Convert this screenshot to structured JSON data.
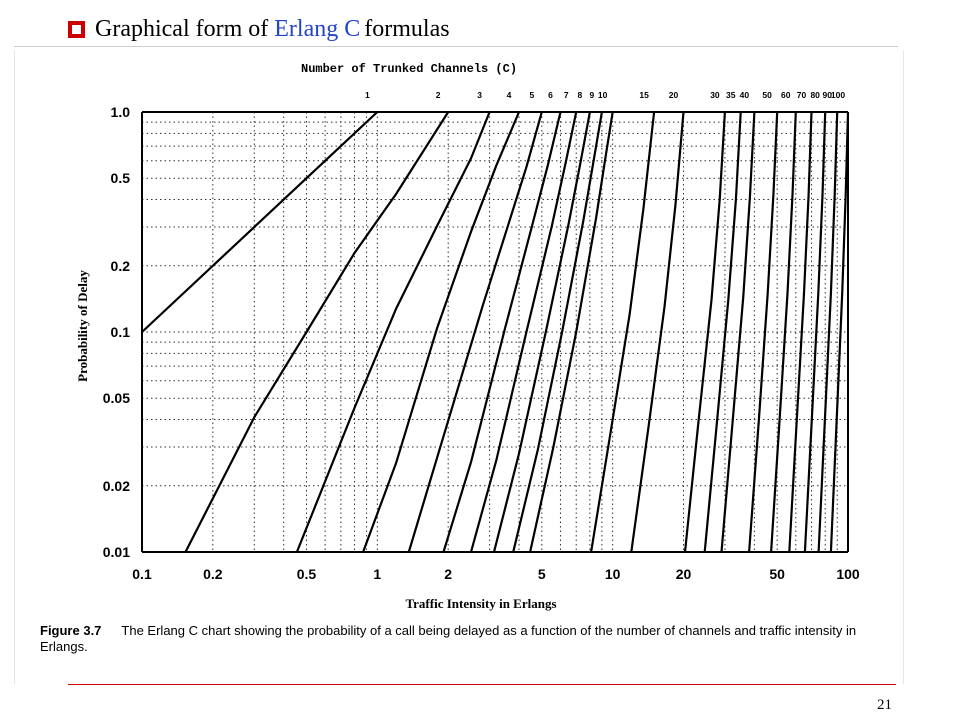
{
  "slide": {
    "title_pre": "Graphical form of",
    "title_em": "Erlang C",
    "title_post": "formulas",
    "page_number": "21"
  },
  "caption": {
    "label": "Figure 3.7",
    "text": "The Erlang C chart showing the probability of a call being delayed as a function of the number of channels and traffic intensity in Erlangs."
  },
  "colors": {
    "bullet": "#cc0000",
    "title_accent": "#2244cc",
    "footer_rule": "#cc0000"
  },
  "chart_data": {
    "type": "line",
    "title": "Number of Trunked Channels (C)",
    "xlabel": "Traffic Intensity in Erlangs",
    "ylabel": "Probability of Delay",
    "x_scale": "log",
    "y_scale": "log",
    "xlim": [
      0.1,
      100
    ],
    "ylim": [
      0.01,
      1.0
    ],
    "grid": true,
    "x_ticks": [
      0.1,
      0.2,
      0.5,
      1,
      2,
      5,
      10,
      20,
      50,
      100
    ],
    "x_tick_labels": [
      "0.1",
      "0.2",
      "0.5",
      "1",
      "2",
      "5",
      "10",
      "20",
      "50",
      "100"
    ],
    "y_ticks": [
      0.01,
      0.02,
      0.05,
      0.1,
      0.2,
      0.5,
      1.0
    ],
    "y_tick_labels": [
      "0.01",
      "0.02",
      "0.05",
      "0.1",
      "0.2",
      "0.5",
      "1.0"
    ],
    "channel_labels": [
      "1",
      "2",
      "3",
      "4",
      "5",
      "6",
      "7",
      "8",
      "9",
      "10",
      "15",
      "20",
      "30",
      "35",
      "40",
      "50",
      "60",
      "70",
      "80",
      "90",
      "100"
    ],
    "series": [
      {
        "name": "1",
        "x": [
          0.1,
          1
        ],
        "y": [
          0.1,
          1.0
        ]
      },
      {
        "name": "2",
        "x": [
          0.153,
          0.3,
          0.5,
          0.8,
          1.2,
          2
        ],
        "y": [
          0.01,
          0.041,
          0.1,
          0.2286,
          0.4235,
          1.0
        ]
      },
      {
        "name": "3",
        "x": [
          0.455,
          0.8,
          1.2,
          1.8,
          2.5,
          3
        ],
        "y": [
          0.01,
          0.0452,
          0.1274,
          0.3055,
          0.6154,
          1.0
        ]
      },
      {
        "name": "4",
        "x": [
          0.87,
          1.2,
          1.8,
          2.5,
          3.2,
          4
        ],
        "y": [
          0.01,
          0.0253,
          0.1052,
          0.2858,
          0.5694,
          1.0
        ]
      },
      {
        "name": "5",
        "x": [
          1.36,
          2,
          2.8,
          3.6,
          4.3,
          5
        ],
        "y": [
          0.01,
          0.0395,
          0.1312,
          0.3068,
          0.5615,
          1.0
        ]
      },
      {
        "name": "6",
        "x": [
          1.91,
          2.5,
          3.5,
          4.5,
          5.3,
          6
        ],
        "y": [
          0.01,
          0.0256,
          0.1055,
          0.2924,
          0.5725,
          1.0
        ]
      },
      {
        "name": "7",
        "x": [
          2.5,
          3.2,
          4.3,
          5.5,
          6.3,
          7
        ],
        "y": [
          0.01,
          0.026,
          0.1,
          0.3,
          0.58,
          1.0
        ]
      },
      {
        "name": "8",
        "x": [
          3.13,
          4.0,
          5.2,
          6.5,
          7.3,
          8
        ],
        "y": [
          0.01,
          0.028,
          0.1,
          0.31,
          0.59,
          1.0
        ]
      },
      {
        "name": "9",
        "x": [
          3.78,
          4.8,
          6.1,
          7.5,
          8.3,
          9
        ],
        "y": [
          0.01,
          0.029,
          0.1,
          0.32,
          0.6,
          1.0
        ]
      },
      {
        "name": "10",
        "x": [
          4.46,
          5.6,
          7.0,
          8.5,
          9.3,
          10
        ],
        "y": [
          0.01,
          0.03,
          0.1,
          0.33,
          0.61,
          1.0
        ]
      },
      {
        "name": "15",
        "x": [
          8.1,
          9.8,
          11.8,
          13.5,
          15
        ],
        "y": [
          0.01,
          0.035,
          0.12,
          0.36,
          1.0
        ]
      },
      {
        "name": "20",
        "x": [
          12.0,
          14.2,
          16.6,
          18.5,
          20
        ],
        "y": [
          0.01,
          0.037,
          0.13,
          0.38,
          1.0
        ]
      },
      {
        "name": "30",
        "x": [
          20.3,
          23.2,
          26.3,
          28.5,
          30
        ],
        "y": [
          0.01,
          0.04,
          0.14,
          0.4,
          1.0
        ]
      },
      {
        "name": "35",
        "x": [
          24.6,
          27.8,
          31.0,
          33.4,
          35
        ],
        "y": [
          0.01,
          0.04,
          0.14,
          0.4,
          1.0
        ]
      },
      {
        "name": "40",
        "x": [
          29.0,
          32.4,
          35.9,
          38.3,
          40
        ],
        "y": [
          0.01,
          0.04,
          0.145,
          0.41,
          1.0
        ]
      },
      {
        "name": "50",
        "x": [
          38.0,
          41.8,
          45.6,
          48.2,
          50
        ],
        "y": [
          0.01,
          0.04,
          0.15,
          0.42,
          1.0
        ]
      },
      {
        "name": "60",
        "x": [
          47.1,
          51.2,
          55.3,
          58.1,
          60
        ],
        "y": [
          0.01,
          0.04,
          0.15,
          0.42,
          1.0
        ]
      },
      {
        "name": "70",
        "x": [
          56.3,
          60.6,
          65.0,
          68.0,
          70
        ],
        "y": [
          0.01,
          0.04,
          0.15,
          0.42,
          1.0
        ]
      },
      {
        "name": "80",
        "x": [
          65.6,
          70.2,
          74.8,
          77.9,
          80
        ],
        "y": [
          0.01,
          0.04,
          0.15,
          0.42,
          1.0
        ]
      },
      {
        "name": "90",
        "x": [
          75.0,
          79.8,
          84.6,
          87.8,
          90
        ],
        "y": [
          0.01,
          0.04,
          0.15,
          0.42,
          1.0
        ]
      },
      {
        "name": "100",
        "x": [
          84.6,
          89.5,
          94.5,
          97.8,
          100
        ],
        "y": [
          0.01,
          0.04,
          0.15,
          0.42,
          1.0
        ]
      }
    ]
  }
}
